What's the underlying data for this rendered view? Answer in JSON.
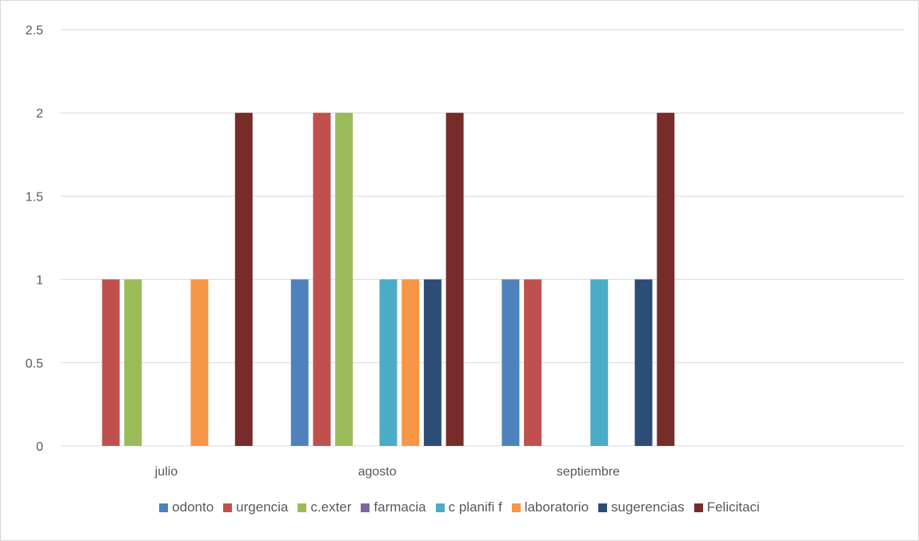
{
  "chart_data": {
    "type": "bar",
    "categories": [
      "julio",
      "agosto",
      "septiembre",
      ""
    ],
    "series": [
      {
        "name": "odonto",
        "color": "#4F81BD",
        "values": [
          0,
          1,
          1,
          0
        ]
      },
      {
        "name": "urgencia",
        "color": "#C0504D",
        "values": [
          1,
          2,
          1,
          0
        ]
      },
      {
        "name": "c.exter",
        "color": "#9BBB59",
        "values": [
          1,
          2,
          0,
          0
        ]
      },
      {
        "name": "farmacia",
        "color": "#8064A2",
        "values": [
          0,
          0,
          0,
          0
        ]
      },
      {
        "name": "c planifi f",
        "color": "#4BACC6",
        "values": [
          0,
          1,
          1,
          0
        ]
      },
      {
        "name": "laboratorio",
        "color": "#F79646",
        "values": [
          1,
          1,
          0,
          0
        ]
      },
      {
        "name": "sugerencias",
        "color": "#2C4D75",
        "values": [
          0,
          1,
          1,
          0
        ]
      },
      {
        "name": "Felicitaci",
        "color": "#772C2A",
        "values": [
          2,
          2,
          2,
          0
        ]
      }
    ],
    "yticks": [
      "0",
      "0.5",
      "1",
      "1.5",
      "2",
      "2.5"
    ],
    "ylim": [
      0,
      2.5
    ],
    "title": "",
    "xlabel": "",
    "ylabel": "",
    "grid": true,
    "legend_position": "bottom"
  }
}
